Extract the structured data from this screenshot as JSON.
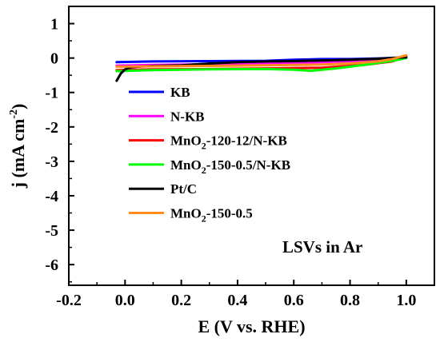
{
  "chart_data": {
    "type": "line",
    "xlabel": "E (V vs. RHE)",
    "ylabel_main": "j (mA cm",
    "ylabel_sup": "-2",
    "ylabel_close": ")",
    "xlim": [
      -0.2,
      1.1
    ],
    "ylim": [
      -6.6,
      1.5
    ],
    "x_ticks": [
      -0.2,
      0.0,
      0.2,
      0.4,
      0.6,
      0.8,
      1.0
    ],
    "x_tick_labels": [
      "-0.2",
      "0.0",
      "0.2",
      "0.4",
      "0.6",
      "0.8",
      "1.0"
    ],
    "y_ticks": [
      1,
      0,
      -1,
      -2,
      -3,
      -4,
      -5,
      -6
    ],
    "y_tick_labels": [
      "1",
      "0",
      "-1",
      "-2",
      "-3",
      "-4",
      "-5",
      "-6"
    ],
    "grid": false,
    "legend_position": "center-left",
    "annotation": "LSVs in Ar",
    "series": [
      {
        "name": "KB",
        "legend_parts": [
          {
            "t": "KB",
            "sub": false
          }
        ],
        "color": "#0000ff",
        "x": [
          -0.03,
          0.1,
          0.3,
          0.5,
          0.6,
          0.7,
          0.8,
          0.9,
          1.0
        ],
        "y": [
          -0.12,
          -0.1,
          -0.09,
          -0.08,
          -0.05,
          -0.03,
          -0.03,
          -0.01,
          0.02
        ]
      },
      {
        "name": "N-KB",
        "legend_parts": [
          {
            "t": "N-KB",
            "sub": false
          }
        ],
        "color": "#ff00ff",
        "x": [
          -0.03,
          0.1,
          0.3,
          0.5,
          0.7,
          0.9,
          1.0
        ],
        "y": [
          -0.22,
          -0.2,
          -0.18,
          -0.15,
          -0.12,
          -0.06,
          0.02
        ]
      },
      {
        "name": "MnO2-120-12/N-KB",
        "legend_parts": [
          {
            "t": "MnO",
            "sub": false
          },
          {
            "t": "2",
            "sub": true
          },
          {
            "t": "-120-12/N-KB",
            "sub": false
          }
        ],
        "color": "#ff0000",
        "x": [
          -0.03,
          0.1,
          0.3,
          0.5,
          0.7,
          0.85,
          0.95,
          1.0
        ],
        "y": [
          -0.35,
          -0.33,
          -0.32,
          -0.3,
          -0.28,
          -0.2,
          -0.1,
          0.05
        ]
      },
      {
        "name": "MnO2-150-0.5/N-KB",
        "legend_parts": [
          {
            "t": "MnO",
            "sub": false
          },
          {
            "t": "2",
            "sub": true
          },
          {
            "t": "-150-0.5/N-KB",
            "sub": false
          }
        ],
        "color": "#00ff00",
        "x": [
          -0.03,
          0.1,
          0.3,
          0.5,
          0.6,
          0.66,
          0.75,
          0.85,
          0.95,
          1.0
        ],
        "y": [
          -0.38,
          -0.35,
          -0.33,
          -0.32,
          -0.34,
          -0.37,
          -0.3,
          -0.2,
          -0.08,
          0.0
        ]
      },
      {
        "name": "Pt/C",
        "legend_parts": [
          {
            "t": "Pt/C",
            "sub": false
          }
        ],
        "color": "#000000",
        "x": [
          -0.03,
          -0.015,
          0.0,
          0.02,
          0.05,
          0.1,
          0.2,
          0.3,
          0.4,
          0.5,
          0.6,
          0.7,
          0.8,
          0.9,
          1.0
        ],
        "y": [
          -0.66,
          -0.45,
          -0.33,
          -0.27,
          -0.25,
          -0.23,
          -0.21,
          -0.16,
          -0.12,
          -0.1,
          -0.09,
          -0.07,
          -0.05,
          -0.02,
          0.02
        ]
      },
      {
        "name": "MnO2-150-0.5",
        "legend_parts": [
          {
            "t": "MnO",
            "sub": false
          },
          {
            "t": "2",
            "sub": true
          },
          {
            "t": "-150-0.5",
            "sub": false
          }
        ],
        "color": "#ff8c1a",
        "x": [
          -0.03,
          0.1,
          0.3,
          0.5,
          0.7,
          0.8,
          0.9,
          0.95,
          1.0
        ],
        "y": [
          -0.25,
          -0.24,
          -0.23,
          -0.21,
          -0.19,
          -0.16,
          -0.1,
          -0.03,
          0.08
        ]
      }
    ]
  }
}
